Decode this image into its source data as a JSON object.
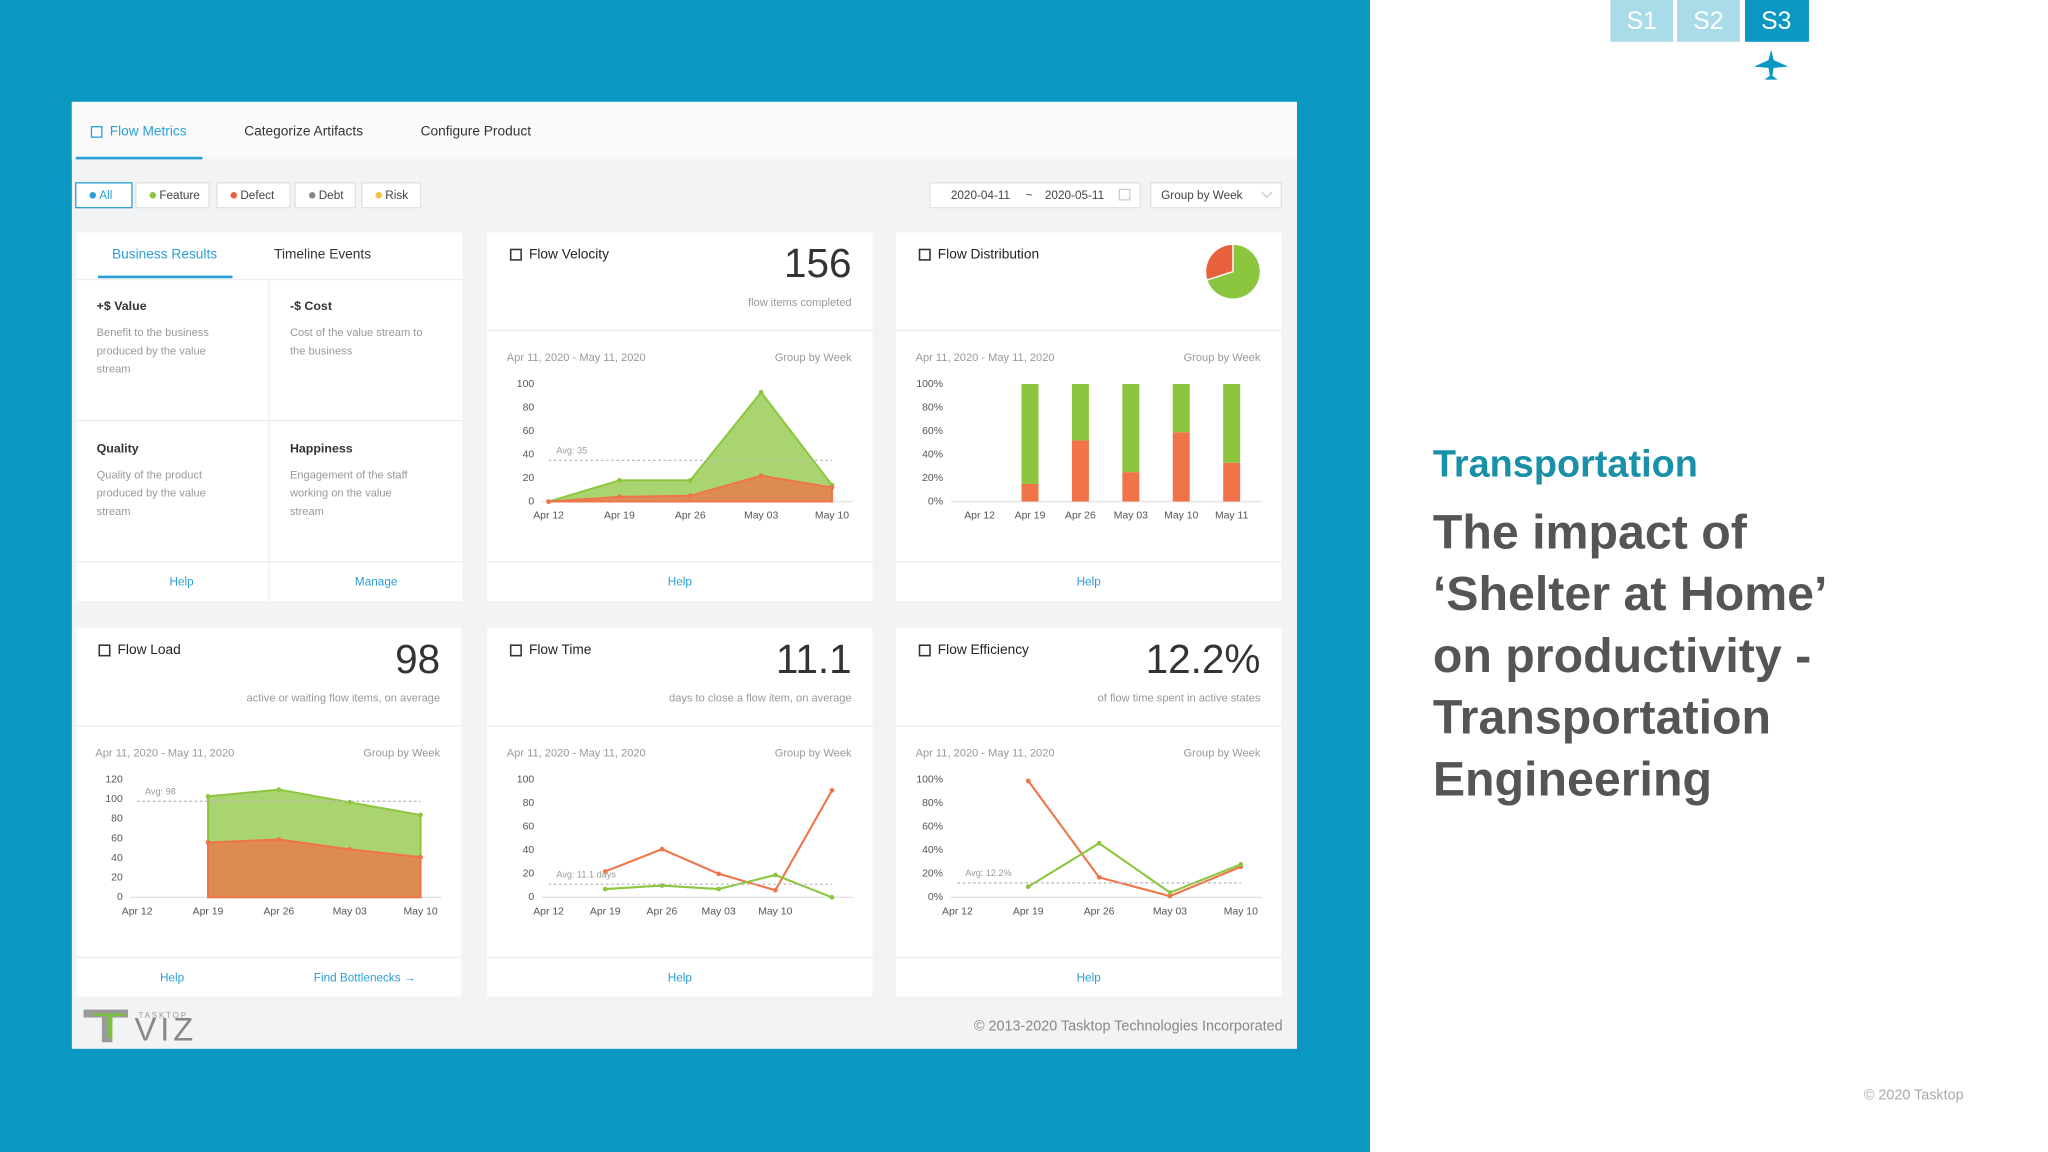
{
  "slide": {
    "tabs": [
      "S1",
      "S2",
      "S3"
    ],
    "category": "Transportation",
    "title_lines": [
      "The impact of",
      "‘Shelter at Home’",
      "on productivity -",
      "Transportation",
      "Engineering"
    ],
    "copyright": "© 2020 Tasktop"
  },
  "dashboard": {
    "nav": [
      "Flow Metrics",
      "Categorize Artifacts",
      "Configure Product"
    ],
    "filters": [
      "All",
      "Feature",
      "Defect",
      "Debt",
      "Risk"
    ],
    "date_from": "2020-04-11",
    "date_sep": "~",
    "date_to": "2020-05-11",
    "group_by": "Group by Week",
    "business": {
      "tabs": [
        "Business Results",
        "Timeline Events"
      ],
      "cells": [
        {
          "title": "+$ Value",
          "lines": [
            "Benefit to the business",
            "produced by the value",
            "stream"
          ]
        },
        {
          "title": "-$ Cost",
          "lines": [
            "Cost of the value stream to",
            "the business"
          ]
        },
        {
          "title": "Quality",
          "lines": [
            "Quality of the product",
            "produced by the value",
            "stream"
          ]
        },
        {
          "title": "Happiness",
          "lines": [
            "Engagement of the staff",
            "working on the value",
            "stream"
          ]
        }
      ],
      "links": [
        "Help",
        "Manage"
      ]
    },
    "logo_small": "TASKTOP",
    "logo": "VIZ",
    "copyright": "© 2013-2020 Tasktop Technologies Incorporated"
  },
  "chart_data": [
    {
      "type": "area",
      "title": "Flow Velocity",
      "metric": "156",
      "caption": "flow items completed",
      "date_range": "Apr 11, 2020 - May 11, 2020",
      "group_by": "Group by Week",
      "categories": [
        "Apr 12",
        "Apr 19",
        "Apr 26",
        "May 03",
        "May 10"
      ],
      "series": [
        {
          "color": "#8cc63f",
          "values": [
            0,
            18,
            18,
            93,
            14
          ]
        },
        {
          "color": "#f0734a",
          "values": [
            0,
            4,
            5,
            22,
            12
          ]
        }
      ],
      "avg": 35,
      "avg_label": "Avg: 35",
      "ylim": [
        0,
        100
      ],
      "yticks": [
        0,
        20,
        40,
        60,
        80,
        100
      ],
      "links": [
        "Help"
      ]
    },
    {
      "type": "stacked_bar",
      "title": "Flow Distribution",
      "date_range": "Apr 11, 2020 - May 11, 2020",
      "group_by": "Group by Week",
      "categories": [
        "Apr 12",
        "Apr 19",
        "Apr 26",
        "May 03",
        "May 10",
        "May 11"
      ],
      "series": [
        {
          "color": "#f0734a",
          "values": [
            null,
            15,
            52,
            25,
            59,
            33
          ]
        },
        {
          "color": "#8cc63f",
          "values": [
            null,
            85,
            48,
            75,
            41,
            67
          ]
        }
      ],
      "ylim": [
        0,
        100
      ],
      "yticks": [
        {
          "value": 0,
          "label": "0%"
        },
        {
          "value": 20,
          "label": "20%"
        },
        {
          "value": 40,
          "label": "40%"
        },
        {
          "value": 60,
          "label": "60%"
        },
        {
          "value": 80,
          "label": "80%"
        },
        {
          "value": 100,
          "label": "100%"
        }
      ],
      "pie": {
        "values": [
          30,
          70
        ],
        "colors": [
          "#e8603c",
          "#8cc63f"
        ]
      },
      "links": [
        "Help"
      ]
    },
    {
      "type": "area",
      "title": "Flow Load",
      "metric": "98",
      "caption": "active or waiting flow items, on average",
      "date_range": "Apr 11, 2020 - May 11, 2020",
      "group_by": "Group by Week",
      "categories": [
        "Apr 12",
        "Apr 19",
        "Apr 26",
        "May 03",
        "May 10"
      ],
      "series": [
        {
          "color": "#8cc63f",
          "values": [
            null,
            103,
            110,
            97,
            84
          ]
        },
        {
          "color": "#f0734a",
          "values": [
            null,
            56,
            59,
            49,
            41
          ]
        }
      ],
      "avg": 98,
      "avg_label": "Avg: 98",
      "ylim": [
        0,
        120
      ],
      "yticks": [
        0,
        20,
        40,
        60,
        80,
        100,
        120
      ],
      "links": [
        "Help",
        "Find Bottlenecks →"
      ]
    },
    {
      "type": "line",
      "title": "Flow Time",
      "metric": "11.1",
      "caption": "days to close a flow item, on average",
      "date_range": "Apr 11, 2020 - May 11, 2020",
      "group_by": "Group by Week",
      "categories": [
        "Apr 12",
        "Apr 19",
        "Apr 26",
        "May 03",
        "May 10",
        null
      ],
      "series": [
        {
          "color": "#f0734a",
          "values": [
            null,
            22,
            41,
            20,
            6,
            91
          ]
        },
        {
          "color": "#8cc63f",
          "values": [
            null,
            7,
            10,
            7,
            19,
            0
          ]
        }
      ],
      "avg": 11.1,
      "avg_label": "Avg: 11.1 days",
      "ylim": [
        0,
        100
      ],
      "yticks": [
        0,
        20,
        40,
        60,
        80,
        100
      ],
      "links": [
        "Help"
      ]
    },
    {
      "type": "line",
      "title": "Flow Efficiency",
      "metric": "12.2%",
      "caption": "of flow time spent in active states",
      "date_range": "Apr 11, 2020 - May 11, 2020",
      "group_by": "Group by Week",
      "categories": [
        "Apr 12",
        "Apr 19",
        "Apr 26",
        "May 03",
        "May 10"
      ],
      "series": [
        {
          "color": "#f0734a",
          "values": [
            null,
            99,
            17,
            1,
            26
          ]
        },
        {
          "color": "#8cc63f",
          "values": [
            null,
            9,
            46,
            4,
            28
          ]
        }
      ],
      "avg": 12.2,
      "avg_label": "Avg: 12.2%",
      "ylim": [
        0,
        100
      ],
      "yticks": [
        {
          "value": 0,
          "label": "0%"
        },
        {
          "value": 20,
          "label": "20%"
        },
        {
          "value": 40,
          "label": "40%"
        },
        {
          "value": 60,
          "label": "60%"
        },
        {
          "value": 80,
          "label": "80%"
        },
        {
          "value": 100,
          "label": "100%"
        }
      ],
      "links": [
        "Help"
      ]
    }
  ]
}
